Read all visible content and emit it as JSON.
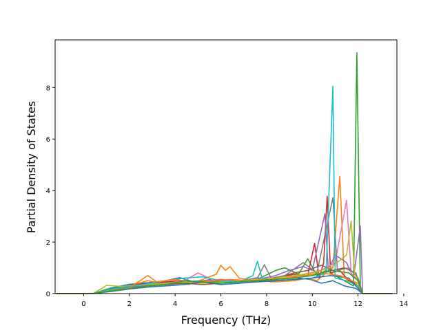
{
  "chart_data": {
    "type": "line",
    "title": "",
    "xlabel": "Frequency (THz)",
    "ylabel": "Partial Density of States",
    "xlim": [
      -1.25,
      13.7
    ],
    "ylim": [
      0,
      9.85
    ],
    "xticks": [
      0,
      2,
      4,
      6,
      8,
      10,
      12,
      14
    ],
    "yticks": [
      0,
      2,
      4,
      6,
      8
    ],
    "grid": false,
    "legend": "none",
    "series": [
      {
        "color": "#1f77b4",
        "points": [
          [
            -1.2,
            0
          ],
          [
            0.4,
            0
          ],
          [
            1.2,
            0.22
          ],
          [
            2.0,
            0.36
          ],
          [
            2.8,
            0.42
          ],
          [
            3.6,
            0.5
          ],
          [
            4.2,
            0.62
          ],
          [
            4.8,
            0.45
          ],
          [
            5.6,
            0.55
          ],
          [
            6.4,
            0.42
          ],
          [
            7.0,
            0.5
          ],
          [
            7.6,
            0.62
          ],
          [
            8.2,
            0.45
          ],
          [
            8.8,
            0.7
          ],
          [
            9.4,
            0.6
          ],
          [
            9.9,
            0.55
          ],
          [
            10.4,
            0.4
          ],
          [
            10.9,
            0.5
          ],
          [
            11.4,
            0.3
          ],
          [
            11.9,
            0.2
          ],
          [
            12.2,
            0
          ],
          [
            13.5,
            0
          ]
        ]
      },
      {
        "color": "#ff7f0e",
        "points": [
          [
            -1.2,
            0
          ],
          [
            0.4,
            0
          ],
          [
            1.2,
            0.18
          ],
          [
            2.0,
            0.3
          ],
          [
            2.8,
            0.5
          ],
          [
            3.4,
            0.4
          ],
          [
            4.0,
            0.5
          ],
          [
            4.6,
            0.35
          ],
          [
            5.2,
            0.55
          ],
          [
            5.8,
            0.75
          ],
          [
            6.0,
            1.1
          ],
          [
            6.2,
            0.9
          ],
          [
            6.4,
            1.05
          ],
          [
            6.8,
            0.6
          ],
          [
            7.6,
            0.5
          ],
          [
            8.4,
            0.45
          ],
          [
            9.2,
            0.5
          ],
          [
            9.8,
            0.6
          ],
          [
            10.2,
            0.5
          ],
          [
            10.6,
            0.8
          ],
          [
            10.9,
            1.0
          ],
          [
            11.2,
            4.55
          ],
          [
            11.4,
            0.6
          ],
          [
            11.9,
            0.4
          ],
          [
            12.2,
            0
          ],
          [
            13.5,
            0
          ]
        ]
      },
      {
        "color": "#2ca02c",
        "points": [
          [
            -1.2,
            0
          ],
          [
            0.4,
            0
          ],
          [
            1.2,
            0.2
          ],
          [
            2.0,
            0.32
          ],
          [
            2.8,
            0.38
          ],
          [
            3.6,
            0.45
          ],
          [
            4.4,
            0.4
          ],
          [
            5.2,
            0.5
          ],
          [
            6.0,
            0.45
          ],
          [
            6.8,
            0.5
          ],
          [
            7.6,
            0.55
          ],
          [
            8.4,
            0.9
          ],
          [
            8.8,
            1.0
          ],
          [
            9.4,
            0.75
          ],
          [
            9.8,
            1.35
          ],
          [
            10.2,
            0.7
          ],
          [
            10.6,
            0.9
          ],
          [
            11.0,
            0.7
          ],
          [
            11.4,
            0.5
          ],
          [
            11.8,
            0.3
          ],
          [
            11.95,
            9.35
          ],
          [
            12.1,
            0.3
          ],
          [
            12.2,
            0
          ],
          [
            13.5,
            0
          ]
        ]
      },
      {
        "color": "#d62728",
        "points": [
          [
            -1.2,
            0
          ],
          [
            0.4,
            0
          ],
          [
            1.2,
            0.15
          ],
          [
            2.0,
            0.3
          ],
          [
            2.8,
            0.4
          ],
          [
            3.6,
            0.45
          ],
          [
            4.4,
            0.5
          ],
          [
            5.2,
            0.4
          ],
          [
            6.0,
            0.5
          ],
          [
            6.8,
            0.45
          ],
          [
            7.6,
            0.5
          ],
          [
            8.4,
            0.6
          ],
          [
            9.2,
            0.75
          ],
          [
            9.8,
            0.7
          ],
          [
            10.1,
            1.95
          ],
          [
            10.3,
            0.6
          ],
          [
            10.5,
            1.2
          ],
          [
            10.65,
            3.78
          ],
          [
            10.8,
            0.8
          ],
          [
            11.2,
            0.9
          ],
          [
            11.6,
            0.5
          ],
          [
            12.0,
            0.3
          ],
          [
            12.2,
            0
          ],
          [
            13.5,
            0
          ]
        ]
      },
      {
        "color": "#9467bd",
        "points": [
          [
            -1.2,
            0
          ],
          [
            0.4,
            0
          ],
          [
            1.2,
            0.12
          ],
          [
            2.0,
            0.25
          ],
          [
            2.8,
            0.35
          ],
          [
            3.6,
            0.4
          ],
          [
            4.4,
            0.45
          ],
          [
            5.2,
            0.5
          ],
          [
            6.0,
            0.55
          ],
          [
            6.8,
            0.5
          ],
          [
            7.6,
            0.55
          ],
          [
            8.4,
            0.7
          ],
          [
            9.0,
            0.9
          ],
          [
            9.6,
            1.05
          ],
          [
            10.0,
            0.9
          ],
          [
            10.55,
            3.1
          ],
          [
            10.7,
            0.9
          ],
          [
            11.0,
            1.5
          ],
          [
            11.5,
            1.2
          ],
          [
            11.8,
            0.6
          ],
          [
            12.1,
            2.62
          ],
          [
            12.2,
            0
          ],
          [
            13.5,
            0
          ]
        ]
      },
      {
        "color": "#8c564b",
        "points": [
          [
            -1.2,
            0
          ],
          [
            0.4,
            0
          ],
          [
            1.2,
            0.1
          ],
          [
            2.0,
            0.2
          ],
          [
            2.8,
            0.3
          ],
          [
            3.6,
            0.35
          ],
          [
            4.4,
            0.4
          ],
          [
            5.2,
            0.35
          ],
          [
            6.0,
            0.4
          ],
          [
            6.8,
            0.45
          ],
          [
            7.6,
            0.5
          ],
          [
            8.4,
            0.6
          ],
          [
            9.2,
            0.8
          ],
          [
            9.8,
            0.9
          ],
          [
            10.4,
            1.1
          ],
          [
            10.9,
            0.9
          ],
          [
            11.4,
            1.0
          ],
          [
            11.9,
            0.8
          ],
          [
            12.2,
            0
          ],
          [
            13.5,
            0
          ]
        ]
      },
      {
        "color": "#e377c2",
        "points": [
          [
            -1.2,
            0
          ],
          [
            0.4,
            0
          ],
          [
            1.2,
            0.1
          ],
          [
            2.0,
            0.2
          ],
          [
            2.8,
            0.35
          ],
          [
            3.6,
            0.4
          ],
          [
            4.4,
            0.5
          ],
          [
            5.0,
            0.8
          ],
          [
            5.6,
            0.55
          ],
          [
            6.4,
            0.5
          ],
          [
            7.2,
            0.45
          ],
          [
            8.0,
            0.5
          ],
          [
            8.8,
            0.6
          ],
          [
            9.6,
            0.75
          ],
          [
            10.4,
            0.9
          ],
          [
            11.0,
            1.2
          ],
          [
            11.5,
            3.62
          ],
          [
            11.7,
            0.8
          ],
          [
            12.0,
            0.5
          ],
          [
            12.2,
            0
          ],
          [
            13.5,
            0
          ]
        ]
      },
      {
        "color": "#7f7f7f",
        "points": [
          [
            -1.2,
            0
          ],
          [
            0.4,
            0
          ],
          [
            1.2,
            0.15
          ],
          [
            2.0,
            0.25
          ],
          [
            2.8,
            0.3
          ],
          [
            3.6,
            0.4
          ],
          [
            4.4,
            0.45
          ],
          [
            5.2,
            0.5
          ],
          [
            6.0,
            0.45
          ],
          [
            6.8,
            0.5
          ],
          [
            7.6,
            0.6
          ],
          [
            7.9,
            1.12
          ],
          [
            8.2,
            0.6
          ],
          [
            8.8,
            0.7
          ],
          [
            9.6,
            1.2
          ],
          [
            10.2,
            0.8
          ],
          [
            10.9,
            3.72
          ],
          [
            11.1,
            0.9
          ],
          [
            11.6,
            1.0
          ],
          [
            12.0,
            0.6
          ],
          [
            12.2,
            0
          ],
          [
            13.5,
            0
          ]
        ]
      },
      {
        "color": "#bcbd22",
        "points": [
          [
            -1.2,
            0
          ],
          [
            0.4,
            0
          ],
          [
            0.8,
            0.2
          ],
          [
            1.0,
            0.32
          ],
          [
            1.6,
            0.28
          ],
          [
            2.0,
            0.3
          ],
          [
            2.8,
            0.35
          ],
          [
            3.6,
            0.4
          ],
          [
            4.4,
            0.45
          ],
          [
            5.2,
            0.4
          ],
          [
            6.0,
            0.45
          ],
          [
            6.8,
            0.5
          ],
          [
            7.6,
            0.55
          ],
          [
            8.4,
            0.6
          ],
          [
            9.2,
            0.7
          ],
          [
            10.0,
            0.8
          ],
          [
            10.8,
            1.0
          ],
          [
            11.5,
            1.5
          ],
          [
            11.7,
            2.82
          ],
          [
            11.85,
            0.8
          ],
          [
            12.2,
            0
          ],
          [
            13.5,
            0
          ]
        ]
      },
      {
        "color": "#17becf",
        "points": [
          [
            -1.2,
            0
          ],
          [
            0.4,
            0
          ],
          [
            1.2,
            0.18
          ],
          [
            2.0,
            0.28
          ],
          [
            2.8,
            0.38
          ],
          [
            3.6,
            0.5
          ],
          [
            4.4,
            0.6
          ],
          [
            5.2,
            0.65
          ],
          [
            6.0,
            0.5
          ],
          [
            6.8,
            0.45
          ],
          [
            7.4,
            0.7
          ],
          [
            7.6,
            1.25
          ],
          [
            7.8,
            0.6
          ],
          [
            8.4,
            0.5
          ],
          [
            9.2,
            0.55
          ],
          [
            10.0,
            0.6
          ],
          [
            10.6,
            0.8
          ],
          [
            10.9,
            8.05
          ],
          [
            11.0,
            0.6
          ],
          [
            11.5,
            0.5
          ],
          [
            12.0,
            0.3
          ],
          [
            12.2,
            0
          ],
          [
            13.5,
            0
          ]
        ]
      },
      {
        "color": "#1f77b4",
        "points": [
          [
            -1.2,
            0
          ],
          [
            0.4,
            0
          ],
          [
            1.2,
            0.08
          ],
          [
            2.0,
            0.18
          ],
          [
            2.8,
            0.25
          ],
          [
            3.6,
            0.3
          ],
          [
            4.4,
            0.35
          ],
          [
            5.2,
            0.45
          ],
          [
            6.0,
            0.35
          ],
          [
            6.8,
            0.4
          ],
          [
            7.6,
            0.45
          ],
          [
            8.4,
            0.5
          ],
          [
            9.2,
            0.55
          ],
          [
            10.0,
            0.6
          ],
          [
            10.8,
            0.7
          ],
          [
            11.6,
            0.6
          ],
          [
            12.2,
            0
          ],
          [
            13.5,
            0
          ]
        ]
      },
      {
        "color": "#ff7f0e",
        "points": [
          [
            -1.2,
            0
          ],
          [
            0.4,
            0
          ],
          [
            1.2,
            0.12
          ],
          [
            2.0,
            0.22
          ],
          [
            2.8,
            0.7
          ],
          [
            3.2,
            0.45
          ],
          [
            4.0,
            0.55
          ],
          [
            4.8,
            0.45
          ],
          [
            5.6,
            0.5
          ],
          [
            6.4,
            0.55
          ],
          [
            7.2,
            0.5
          ],
          [
            8.0,
            0.55
          ],
          [
            8.8,
            0.6
          ],
          [
            9.6,
            0.7
          ],
          [
            10.4,
            0.8
          ],
          [
            11.2,
            0.7
          ],
          [
            12.0,
            0.4
          ],
          [
            12.2,
            0
          ],
          [
            13.5,
            0
          ]
        ]
      },
      {
        "color": "#2ca02c",
        "points": [
          [
            -1.2,
            0
          ],
          [
            0.4,
            0
          ],
          [
            1.2,
            0.1
          ],
          [
            2.0,
            0.2
          ],
          [
            2.8,
            0.3
          ],
          [
            3.6,
            0.35
          ],
          [
            4.4,
            0.5
          ],
          [
            5.2,
            0.45
          ],
          [
            6.0,
            0.4
          ],
          [
            6.8,
            0.45
          ],
          [
            7.6,
            0.5
          ],
          [
            8.4,
            0.55
          ],
          [
            9.2,
            0.6
          ],
          [
            10.0,
            0.7
          ],
          [
            10.8,
            0.9
          ],
          [
            11.6,
            0.8
          ],
          [
            12.0,
            0.5
          ],
          [
            12.2,
            0
          ],
          [
            13.5,
            0
          ]
        ]
      }
    ]
  }
}
